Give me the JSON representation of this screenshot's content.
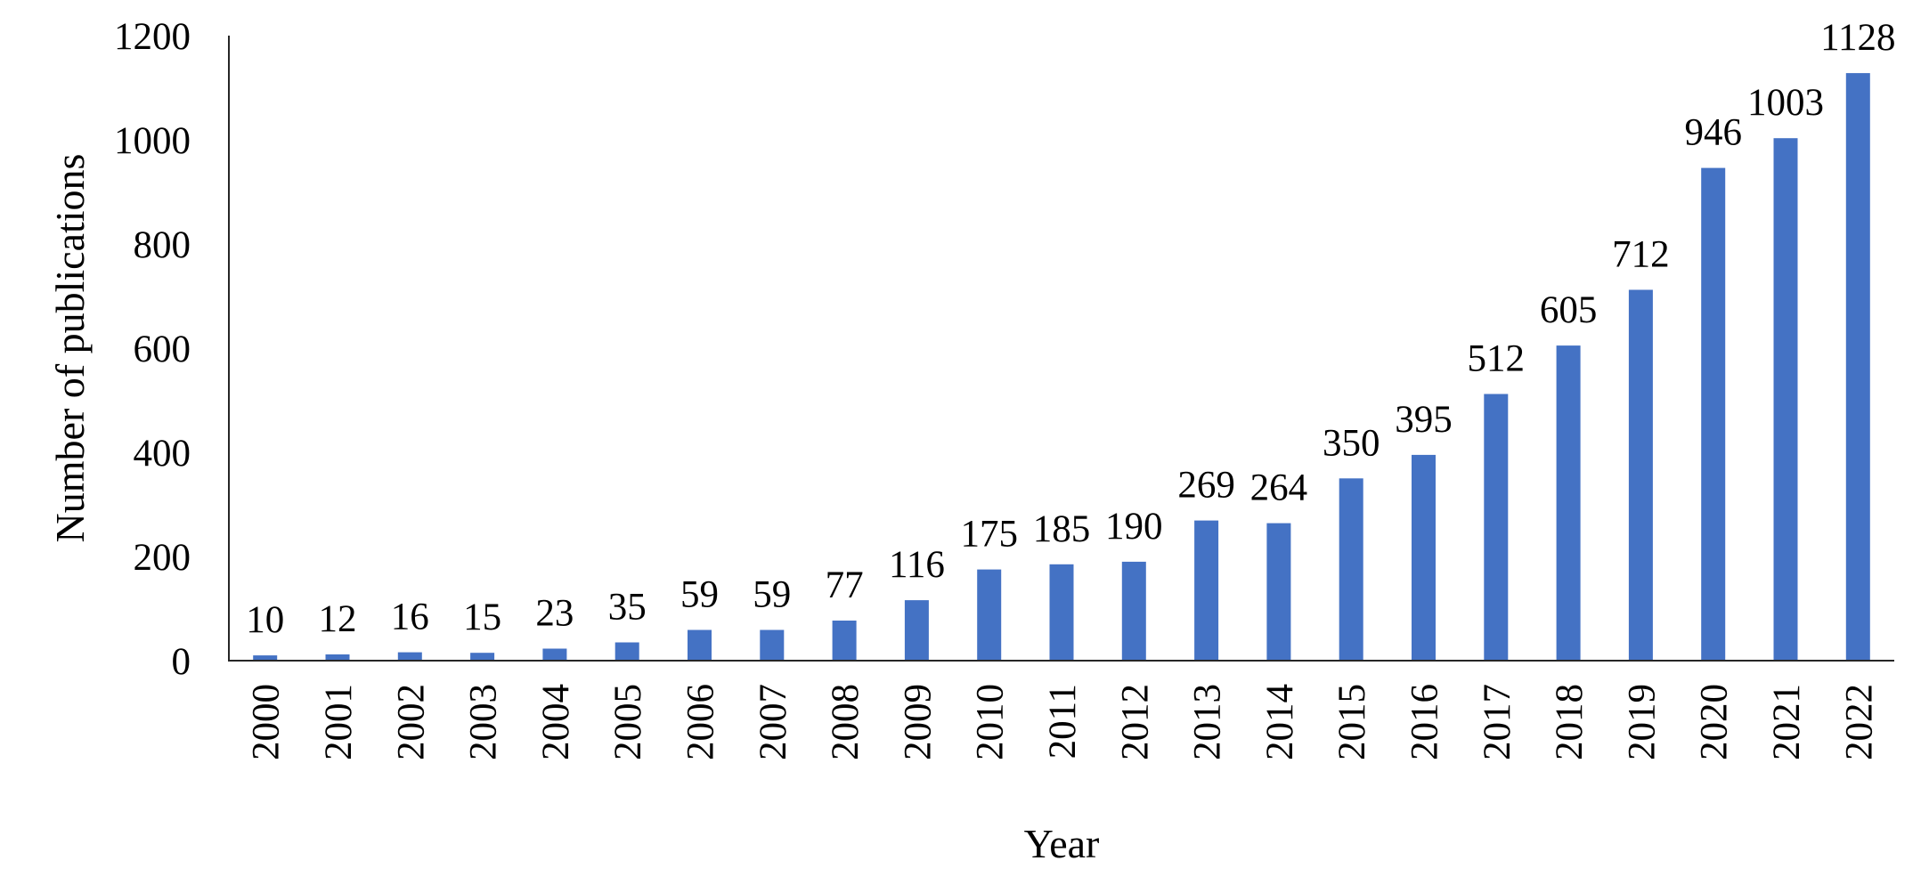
{
  "figure": {
    "background_color": "#ffffff"
  },
  "chart_data": {
    "type": "bar",
    "title": "",
    "xlabel": "Year",
    "ylabel": "Number of publications",
    "categories": [
      "2000",
      "2001",
      "2002",
      "2003",
      "2004",
      "2005",
      "2006",
      "2007",
      "2008",
      "2009",
      "2010",
      "2011",
      "2012",
      "2013",
      "2014",
      "2015",
      "2016",
      "2017",
      "2018",
      "2019",
      "2020",
      "2021",
      "2022"
    ],
    "values": [
      10,
      12,
      16,
      15,
      23,
      35,
      59,
      59,
      77,
      116,
      175,
      185,
      190,
      269,
      264,
      350,
      395,
      512,
      605,
      712,
      946,
      1003,
      1128
    ],
    "data_labels": [
      "10",
      "12",
      "16",
      "15",
      "23",
      "35",
      "59",
      "59",
      "77",
      "116",
      "175",
      "185",
      "190",
      "269",
      "264",
      "350",
      "395",
      "512",
      "605",
      "712",
      "946",
      "1003",
      "1128"
    ],
    "ylim": [
      0,
      1200
    ],
    "yticks": [
      0,
      200,
      400,
      600,
      800,
      1000,
      1200
    ],
    "ytick_labels": [
      "0",
      "200",
      "400",
      "600",
      "800",
      "1000",
      "1200"
    ],
    "grid": false,
    "legend": "none",
    "x_labels_rotated_degrees": -90,
    "bar_color": "#4472C4",
    "axis_color": "#262626",
    "text_color": "#000000"
  }
}
